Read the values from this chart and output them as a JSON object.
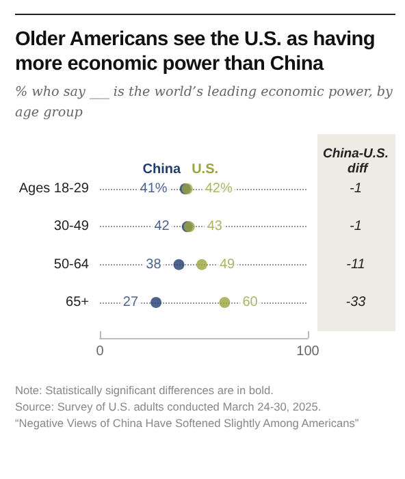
{
  "chart_data": {
    "type": "scatter",
    "orientation": "horizontal",
    "title": "Older Americans see the U.S. as having more economic power than China",
    "subtitle": "% who say ___ is the world’s leading economic power, by age group",
    "categories": [
      "Ages 18-29",
      "30-49",
      "50-64",
      "65+"
    ],
    "series": [
      {
        "name": "China",
        "color": "#1f3d6e",
        "values": [
          41,
          42,
          38,
          27
        ],
        "value_labels": [
          "41%",
          "42",
          "38",
          "27"
        ]
      },
      {
        "name": "U.S.",
        "color": "#9aa43f",
        "values": [
          42,
          43,
          49,
          60
        ],
        "value_labels": [
          "42%",
          "43",
          "49",
          "60"
        ]
      }
    ],
    "xlim": [
      0,
      100
    ],
    "xticks": [
      0,
      100
    ],
    "grid": "y",
    "legend": false,
    "marker": "circle",
    "annotations": [
      "China-U.S. diff",
      "-1",
      "-1",
      "-11",
      "-33",
      "Note: Statistically significant differences are in bold.",
      "Source: Survey of U.S. adults conducted March 24-30, 2025.",
      "“Negative Views of China Have Softened Slightly Among Americans”"
    ]
  }
}
